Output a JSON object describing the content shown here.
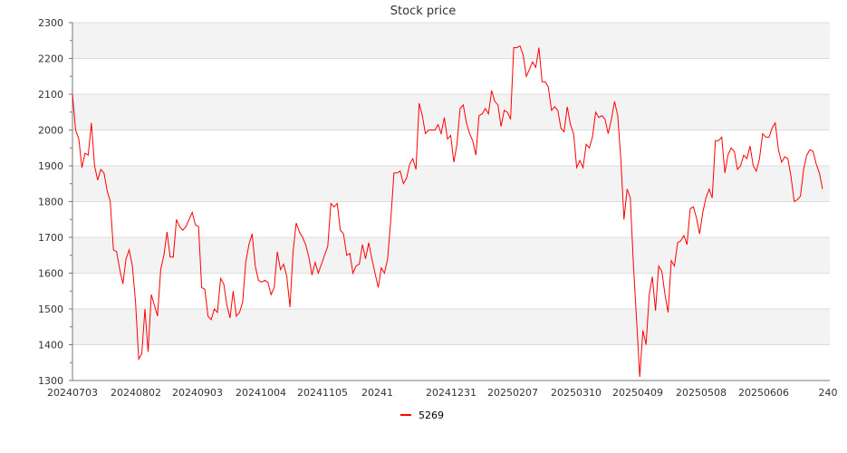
{
  "chart_data": {
    "type": "line",
    "title": "Stock price",
    "xlabel": "",
    "ylabel": "",
    "ylim": [
      1300,
      2300
    ],
    "yticks": [
      1300,
      1400,
      1500,
      1600,
      1700,
      1800,
      1900,
      2000,
      2100,
      2200,
      2300
    ],
    "xtick_labels": [
      "20240703",
      "20240802",
      "20240903",
      "20241004",
      "20241105",
      "20241",
      "20241231",
      "20250207",
      "20250310",
      "20250409",
      "20250508",
      "20250606",
      "240"
    ],
    "grid": true,
    "legend_position": "bottom-center",
    "series": [
      {
        "name": "5269",
        "color": "#ff0000",
        "values": [
          2100,
          2000,
          1975,
          1895,
          1935,
          1930,
          2020,
          1900,
          1860,
          1890,
          1880,
          1830,
          1800,
          1665,
          1660,
          1610,
          1570,
          1640,
          1665,
          1620,
          1520,
          1360,
          1375,
          1500,
          1380,
          1540,
          1510,
          1480,
          1610,
          1650,
          1715,
          1645,
          1645,
          1750,
          1730,
          1720,
          1730,
          1750,
          1770,
          1735,
          1730,
          1560,
          1555,
          1480,
          1470,
          1500,
          1490,
          1585,
          1570,
          1510,
          1475,
          1550,
          1480,
          1490,
          1520,
          1630,
          1680,
          1710,
          1620,
          1580,
          1575,
          1580,
          1575,
          1540,
          1560,
          1660,
          1610,
          1625,
          1590,
          1505,
          1660,
          1740,
          1715,
          1700,
          1680,
          1645,
          1595,
          1630,
          1600,
          1625,
          1650,
          1675,
          1795,
          1785,
          1795,
          1720,
          1710,
          1650,
          1655,
          1600,
          1620,
          1625,
          1680,
          1640,
          1685,
          1640,
          1600,
          1560,
          1615,
          1600,
          1640,
          1750,
          1880,
          1880,
          1885,
          1850,
          1865,
          1905,
          1920,
          1890,
          2075,
          2040,
          1990,
          2000,
          2000,
          2000,
          2015,
          1990,
          2035,
          1975,
          1985,
          1910,
          1960,
          2060,
          2070,
          2020,
          1990,
          1970,
          1930,
          2040,
          2045,
          2060,
          2045,
          2110,
          2080,
          2070,
          2010,
          2055,
          2050,
          2030,
          2230,
          2230,
          2235,
          2210,
          2150,
          2170,
          2190,
          2175,
          2230,
          2135,
          2135,
          2120,
          2055,
          2065,
          2055,
          2005,
          1995,
          2065,
          2015,
          1990,
          1895,
          1915,
          1895,
          1960,
          1950,
          1980,
          2050,
          2035,
          2040,
          2030,
          1990,
          2030,
          2080,
          2040,
          1920,
          1750,
          1835,
          1810,
          1620,
          1470,
          1310,
          1440,
          1400,
          1540,
          1590,
          1495,
          1620,
          1605,
          1540,
          1490,
          1635,
          1620,
          1685,
          1690,
          1705,
          1680,
          1780,
          1785,
          1755,
          1710,
          1770,
          1810,
          1835,
          1810,
          1970,
          1970,
          1980,
          1880,
          1930,
          1950,
          1940,
          1890,
          1900,
          1930,
          1920,
          1955,
          1900,
          1885,
          1920,
          1990,
          1980,
          1980,
          2005,
          2020,
          1945,
          1910,
          1925,
          1920,
          1870,
          1800,
          1805,
          1815,
          1890,
          1930,
          1945,
          1940,
          1905,
          1880,
          1835
        ]
      }
    ]
  }
}
